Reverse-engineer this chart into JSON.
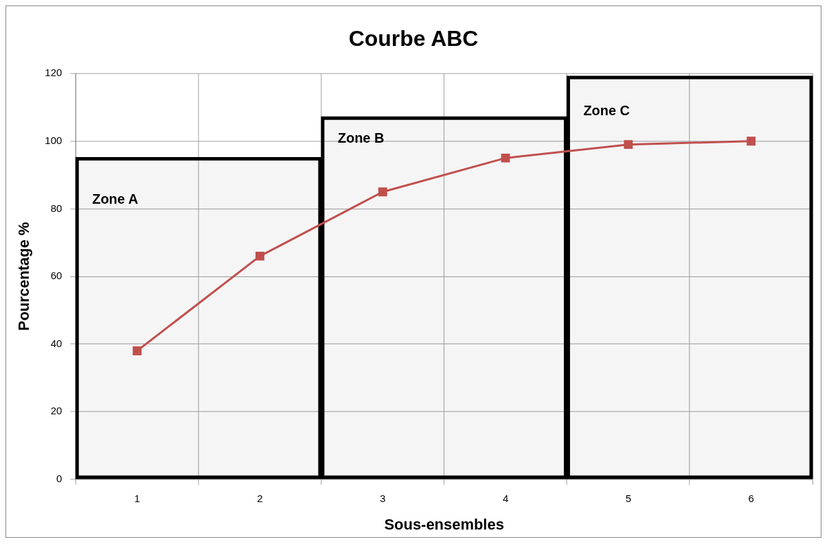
{
  "chart_data": {
    "type": "line",
    "title": "Courbe ABC",
    "xlabel": "Sous-ensembles",
    "ylabel": "Pourcentage %",
    "x": [
      1,
      2,
      3,
      4,
      5,
      6
    ],
    "series": [
      {
        "color": "#c0504d",
        "values": [
          38,
          66,
          85,
          95,
          99,
          100
        ]
      }
    ],
    "xlim": [
      0.5,
      6.5
    ],
    "xticks": [
      {
        "value": 0.5,
        "label": null
      },
      1,
      {
        "value": 1.5,
        "label": null
      },
      2,
      {
        "value": 2.5,
        "label": null
      },
      3,
      {
        "value": 3.5,
        "label": null
      },
      4,
      {
        "value": 4.5,
        "label": null
      },
      5,
      {
        "value": 5.5,
        "label": null
      },
      6,
      {
        "value": 6.5,
        "label": null
      }
    ],
    "ylim": [
      0,
      120
    ],
    "yticks": [
      0,
      20,
      40,
      60,
      80,
      100,
      120
    ],
    "grid": true,
    "legend": false,
    "marker": "square",
    "line_style": "solid",
    "bands": [
      {
        "axis": "x",
        "from": 0.5,
        "to": 2.5,
        "label": "Zone A",
        "color": "#000000"
      },
      {
        "axis": "x",
        "from": 2.5,
        "to": 4.5,
        "label": "Zone B",
        "color": "#000000"
      },
      {
        "axis": "x",
        "from": 4.5,
        "to": 6.5,
        "label": "Zone C",
        "color": "#000000"
      }
    ]
  }
}
